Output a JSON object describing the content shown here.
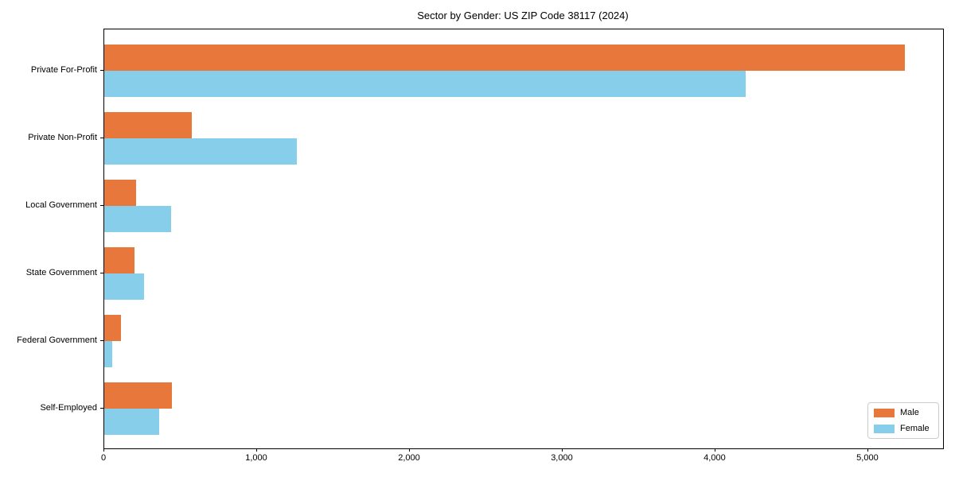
{
  "chart_data": {
    "type": "bar",
    "orientation": "horizontal",
    "title": "Sector by Gender: US ZIP Code 38117 (2024)",
    "categories": [
      "Private For-Profit",
      "Private Non-Profit",
      "Local Government",
      "State Government",
      "Federal Government",
      "Self-Employed"
    ],
    "series": [
      {
        "name": "Male",
        "color": "#e8773c",
        "values": [
          5240,
          575,
          210,
          200,
          110,
          445
        ]
      },
      {
        "name": "Female",
        "color": "#87ceeb",
        "values": [
          4200,
          1260,
          440,
          260,
          50,
          360
        ]
      }
    ],
    "xlabel": "",
    "ylabel": "",
    "xlim": [
      0,
      5490
    ],
    "xticks": {
      "values": [
        0,
        1000,
        2000,
        3000,
        4000,
        5000
      ],
      "labels": [
        "0",
        "1,000",
        "2,000",
        "3,000",
        "4,000",
        "5,000"
      ]
    },
    "grid": false,
    "legend": {
      "position": "lower right"
    }
  }
}
